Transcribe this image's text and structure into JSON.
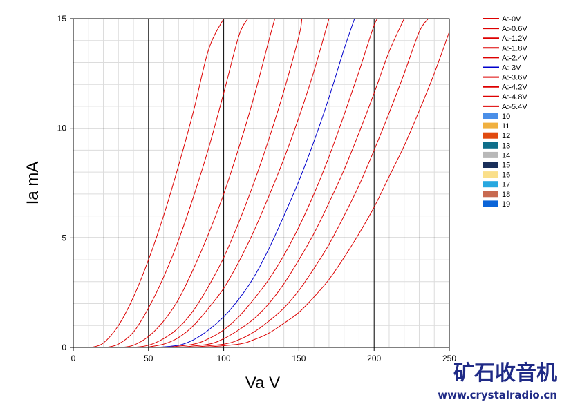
{
  "chart_data": {
    "type": "line",
    "title": "",
    "xlabel": "Va V",
    "ylabel": "Ia mA",
    "xlim": [
      0,
      250
    ],
    "ylim": [
      0,
      15
    ],
    "xticks": [
      "0",
      "50",
      "100",
      "150",
      "200",
      "250"
    ],
    "yticks": [
      "0",
      "5",
      "10",
      "15"
    ],
    "grid": true,
    "legend_position": "right",
    "series": [
      {
        "name": "A:-0V",
        "color": "#dd0000",
        "x": [
          12,
          20,
          30,
          40,
          50,
          60,
          70,
          80,
          90,
          100
        ],
        "y": [
          0,
          0.2,
          1.0,
          2.3,
          4.0,
          6.0,
          8.3,
          10.8,
          13.6,
          15
        ]
      },
      {
        "name": "A:-0.6V",
        "color": "#dd0000",
        "x": [
          22,
          30,
          40,
          50,
          60,
          70,
          80,
          90,
          100,
          110,
          116
        ],
        "y": [
          0,
          0.15,
          0.7,
          1.8,
          3.2,
          4.9,
          6.9,
          9.1,
          11.6,
          14.2,
          15
        ]
      },
      {
        "name": "A:-1.2V",
        "color": "#dd0000",
        "x": [
          32,
          40,
          50,
          60,
          70,
          80,
          90,
          100,
          110,
          120,
          130,
          134
        ],
        "y": [
          0,
          0.1,
          0.5,
          1.2,
          2.2,
          3.6,
          5.2,
          7.0,
          9.1,
          11.4,
          14.0,
          15
        ]
      },
      {
        "name": "A:-1.8V",
        "color": "#dd0000",
        "x": [
          40,
          50,
          60,
          70,
          80,
          90,
          100,
          110,
          120,
          130,
          140,
          150,
          152
        ],
        "y": [
          0,
          0.1,
          0.4,
          0.9,
          1.7,
          2.8,
          4.1,
          5.7,
          7.5,
          9.5,
          11.7,
          14.2,
          15
        ]
      },
      {
        "name": "A:-2.4V",
        "color": "#dd0000",
        "x": [
          48,
          60,
          70,
          80,
          90,
          100,
          110,
          120,
          130,
          140,
          150,
          160,
          170
        ],
        "y": [
          0,
          0.15,
          0.45,
          1.0,
          1.8,
          2.7,
          3.9,
          5.3,
          6.9,
          8.6,
          10.5,
          12.6,
          15
        ]
      },
      {
        "name": "A:-3V",
        "color": "#0000cc",
        "x": [
          55,
          70,
          80,
          90,
          100,
          110,
          120,
          130,
          140,
          150,
          160,
          170,
          180,
          187
        ],
        "y": [
          0,
          0.1,
          0.35,
          0.8,
          1.4,
          2.2,
          3.2,
          4.5,
          6.0,
          7.6,
          9.4,
          11.4,
          13.6,
          15
        ]
      },
      {
        "name": "A:-3.6V",
        "color": "#dd0000",
        "x": [
          62,
          80,
          90,
          100,
          110,
          120,
          130,
          140,
          150,
          160,
          170,
          180,
          190,
          200,
          203
        ],
        "y": [
          0,
          0.15,
          0.4,
          0.8,
          1.4,
          2.2,
          3.1,
          4.2,
          5.5,
          7.0,
          8.7,
          10.6,
          12.6,
          14.7,
          15
        ]
      },
      {
        "name": "A:-4.2V",
        "color": "#dd0000",
        "x": [
          70,
          90,
          100,
          110,
          120,
          130,
          140,
          150,
          160,
          170,
          180,
          190,
          200,
          210,
          220
        ],
        "y": [
          0,
          0.15,
          0.4,
          0.8,
          1.3,
          2.0,
          2.9,
          4.0,
          5.2,
          6.6,
          8.1,
          9.8,
          11.6,
          13.5,
          15
        ]
      },
      {
        "name": "A:-4.8V",
        "color": "#dd0000",
        "x": [
          78,
          100,
          110,
          120,
          130,
          140,
          150,
          160,
          170,
          180,
          190,
          200,
          210,
          220,
          230,
          236
        ],
        "y": [
          0,
          0.15,
          0.35,
          0.7,
          1.2,
          1.8,
          2.6,
          3.6,
          4.7,
          6.0,
          7.4,
          9.0,
          10.7,
          12.5,
          14.4,
          15
        ]
      },
      {
        "name": "A:-5.4V",
        "color": "#dd0000",
        "x": [
          86,
          110,
          120,
          130,
          140,
          150,
          160,
          170,
          180,
          190,
          200,
          210,
          220,
          230,
          240,
          250
        ],
        "y": [
          0,
          0.15,
          0.35,
          0.65,
          1.1,
          1.6,
          2.3,
          3.1,
          4.1,
          5.2,
          6.4,
          7.8,
          9.2,
          10.8,
          12.5,
          14.4
        ]
      }
    ],
    "legend_extra": [
      {
        "name": "10",
        "color": "#4a8fe8"
      },
      {
        "name": "11",
        "color": "#f0b040"
      },
      {
        "name": "12",
        "color": "#e04a10"
      },
      {
        "name": "13",
        "color": "#0e6e8a"
      },
      {
        "name": "14",
        "color": "#b8b8b8"
      },
      {
        "name": "15",
        "color": "#1a2f5a"
      },
      {
        "name": "16",
        "color": "#fadf8a"
      },
      {
        "name": "17",
        "color": "#28a8e0"
      },
      {
        "name": "18",
        "color": "#c86a50"
      },
      {
        "name": "19",
        "color": "#0a64d8"
      }
    ]
  },
  "watermark": {
    "brand": "矿石收音机",
    "url": "www.crystalradio.cn"
  }
}
